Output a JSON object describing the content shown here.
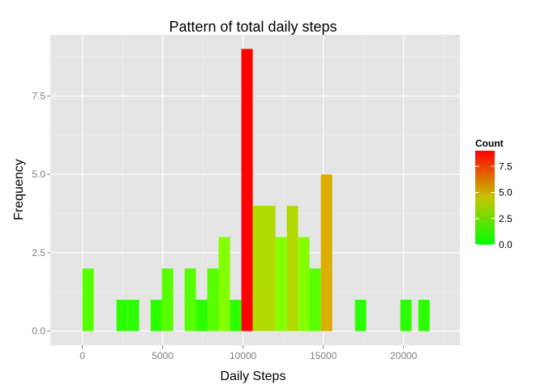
{
  "chart_data": {
    "type": "bar",
    "title": "Pattern of total daily steps",
    "xlabel": "Daily Steps",
    "ylabel": "Frequency",
    "xlim": [
      -2000,
      23500
    ],
    "ylim": [
      -0.45,
      9.45
    ],
    "x_ticks": [
      0,
      5000,
      10000,
      15000,
      20000
    ],
    "x_tick_labels": [
      "0",
      "5000",
      "10000",
      "15000",
      "20000"
    ],
    "y_ticks": [
      0,
      2.5,
      5,
      7.5
    ],
    "y_tick_labels": [
      "0.0",
      "2.5",
      "5.0",
      "7.5"
    ],
    "bin_width": 707,
    "bins": [
      {
        "x_start": 0,
        "count": 2
      },
      {
        "x_start": 2121,
        "count": 1
      },
      {
        "x_start": 2828,
        "count": 1
      },
      {
        "x_start": 4242,
        "count": 1
      },
      {
        "x_start": 4949,
        "count": 2
      },
      {
        "x_start": 6363,
        "count": 2
      },
      {
        "x_start": 7070,
        "count": 1
      },
      {
        "x_start": 7777,
        "count": 2
      },
      {
        "x_start": 8484,
        "count": 3
      },
      {
        "x_start": 9191,
        "count": 1
      },
      {
        "x_start": 9898,
        "count": 9
      },
      {
        "x_start": 10605,
        "count": 4
      },
      {
        "x_start": 11312,
        "count": 4
      },
      {
        "x_start": 12019,
        "count": 3
      },
      {
        "x_start": 12726,
        "count": 4
      },
      {
        "x_start": 13433,
        "count": 3
      },
      {
        "x_start": 14140,
        "count": 2
      },
      {
        "x_start": 14847,
        "count": 5
      },
      {
        "x_start": 16968,
        "count": 1
      },
      {
        "x_start": 19796,
        "count": 1
      },
      {
        "x_start": 20917,
        "count": 1
      }
    ],
    "legend": {
      "title": "Count",
      "placement": "right",
      "ticks": [
        0,
        2.5,
        5,
        7.5
      ],
      "tick_labels": [
        "0.0",
        "2.5",
        "5.0",
        "7.5"
      ],
      "range": [
        0,
        9
      ],
      "low_color": "#00ff00",
      "high_color": "#ff0000"
    },
    "grid": true,
    "panel_background": "#e5e5e5"
  }
}
